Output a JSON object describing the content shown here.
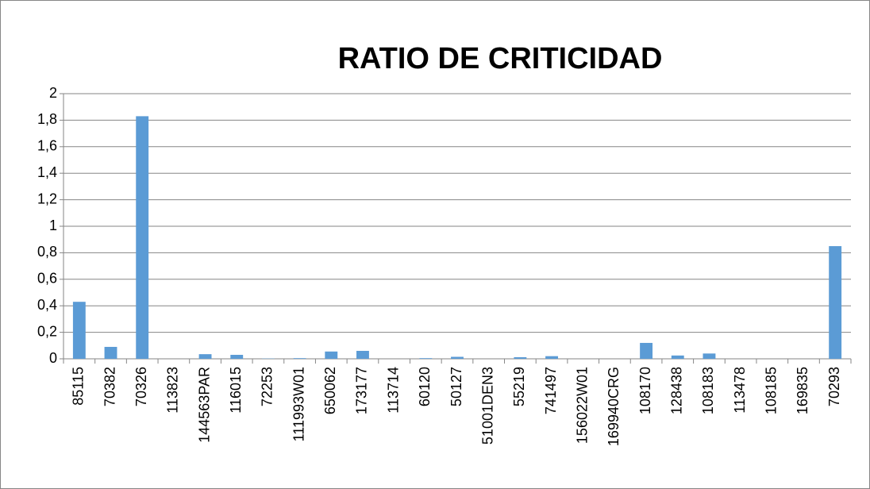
{
  "chart_data": {
    "type": "bar",
    "title": "RATIO DE CRITICIDAD",
    "categories": [
      "85115",
      "70382",
      "70326",
      "113823",
      "144563PAR",
      "116015",
      "72253",
      "111993W01",
      "650062",
      "173177",
      "113714",
      "60120",
      "50127",
      "51001DEN3",
      "55219",
      "741497",
      "156022W01",
      "169940CRG",
      "108170",
      "128438",
      "108183",
      "113478",
      "108185",
      "169835",
      "70293"
    ],
    "values": [
      0.43,
      0.09,
      1.83,
      0,
      0.035,
      0.03,
      0.002,
      0.005,
      0.055,
      0.06,
      0,
      0.005,
      0.015,
      0,
      0.012,
      0.02,
      0,
      0,
      0.12,
      0.025,
      0.04,
      0,
      0,
      0,
      0.85
    ],
    "color": "#5b9bd5",
    "ylim": [
      0,
      2
    ],
    "yticks": [
      0,
      {
        "value": 0.2,
        "label": "0,2"
      },
      {
        "value": 0.4,
        "label": "0,4"
      },
      {
        "value": 0.6,
        "label": "0,6"
      },
      {
        "value": 0.8,
        "label": "0,8"
      },
      1,
      {
        "value": 1.2,
        "label": "1,2"
      },
      {
        "value": 1.4,
        "label": "1,4"
      },
      {
        "value": 1.6,
        "label": "1,6"
      },
      {
        "value": 1.8,
        "label": "1,8"
      },
      2
    ],
    "grid": true
  }
}
